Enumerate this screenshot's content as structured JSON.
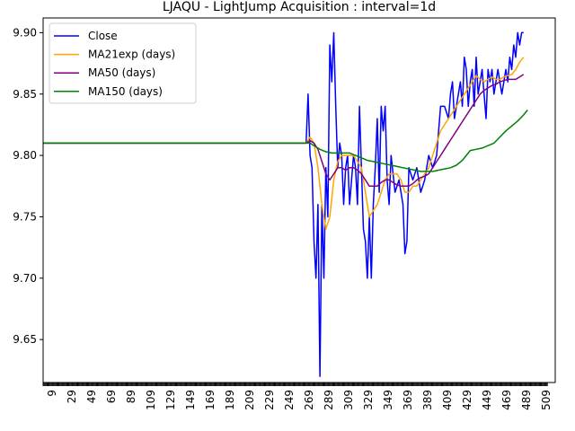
{
  "chart_data": {
    "type": "line",
    "title": "LJAQU - LightJump Acquisition : interval=1d",
    "xlabel": "",
    "ylabel": "",
    "xlim": [
      0,
      518
    ],
    "ylim": [
      9.615,
      9.912
    ],
    "grid": false,
    "legend_position": "top-left",
    "x_ticks": [
      "9",
      "29",
      "49",
      "69",
      "89",
      "109",
      "129",
      "149",
      "169",
      "189",
      "209",
      "229",
      "249",
      "269",
      "289",
      "309",
      "329",
      "349",
      "369",
      "389",
      "409",
      "429",
      "449",
      "469",
      "489",
      "509"
    ],
    "y_ticks": [
      "9.65",
      "9.70",
      "9.75",
      "9.80",
      "9.85",
      "9.90"
    ],
    "series": [
      {
        "name": "Close",
        "color": "#0000ff",
        "points": [
          [
            0,
            9.81
          ],
          [
            266,
            9.81
          ],
          [
            268,
            9.85
          ],
          [
            270,
            9.8
          ],
          [
            272,
            9.79
          ],
          [
            274,
            9.73
          ],
          [
            276,
            9.7
          ],
          [
            278,
            9.76
          ],
          [
            280,
            9.62
          ],
          [
            282,
            9.76
          ],
          [
            284,
            9.7
          ],
          [
            286,
            9.79
          ],
          [
            288,
            9.75
          ],
          [
            290,
            9.89
          ],
          [
            292,
            9.86
          ],
          [
            294,
            9.9
          ],
          [
            296,
            9.84
          ],
          [
            298,
            9.79
          ],
          [
            300,
            9.81
          ],
          [
            302,
            9.8
          ],
          [
            304,
            9.76
          ],
          [
            306,
            9.79
          ],
          [
            308,
            9.8
          ],
          [
            310,
            9.76
          ],
          [
            312,
            9.78
          ],
          [
            314,
            9.8
          ],
          [
            316,
            9.79
          ],
          [
            318,
            9.76
          ],
          [
            320,
            9.84
          ],
          [
            322,
            9.79
          ],
          [
            324,
            9.74
          ],
          [
            326,
            9.73
          ],
          [
            328,
            9.7
          ],
          [
            330,
            9.75
          ],
          [
            332,
            9.7
          ],
          [
            334,
            9.76
          ],
          [
            336,
            9.79
          ],
          [
            338,
            9.83
          ],
          [
            340,
            9.77
          ],
          [
            342,
            9.84
          ],
          [
            344,
            9.82
          ],
          [
            346,
            9.84
          ],
          [
            348,
            9.78
          ],
          [
            350,
            9.76
          ],
          [
            352,
            9.8
          ],
          [
            356,
            9.77
          ],
          [
            360,
            9.78
          ],
          [
            364,
            9.76
          ],
          [
            366,
            9.72
          ],
          [
            368,
            9.73
          ],
          [
            370,
            9.79
          ],
          [
            374,
            9.78
          ],
          [
            378,
            9.79
          ],
          [
            382,
            9.77
          ],
          [
            386,
            9.78
          ],
          [
            390,
            9.8
          ],
          [
            394,
            9.79
          ],
          [
            398,
            9.8
          ],
          [
            402,
            9.84
          ],
          [
            406,
            9.84
          ],
          [
            410,
            9.83
          ],
          [
            412,
            9.85
          ],
          [
            414,
            9.86
          ],
          [
            416,
            9.83
          ],
          [
            418,
            9.84
          ],
          [
            420,
            9.85
          ],
          [
            422,
            9.86
          ],
          [
            424,
            9.84
          ],
          [
            426,
            9.88
          ],
          [
            428,
            9.87
          ],
          [
            430,
            9.84
          ],
          [
            432,
            9.86
          ],
          [
            434,
            9.87
          ],
          [
            436,
            9.84
          ],
          [
            438,
            9.88
          ],
          [
            440,
            9.85
          ],
          [
            442,
            9.86
          ],
          [
            444,
            9.87
          ],
          [
            446,
            9.85
          ],
          [
            448,
            9.83
          ],
          [
            450,
            9.87
          ],
          [
            452,
            9.86
          ],
          [
            454,
            9.87
          ],
          [
            456,
            9.85
          ],
          [
            458,
            9.86
          ],
          [
            460,
            9.87
          ],
          [
            462,
            9.86
          ],
          [
            464,
            9.85
          ],
          [
            466,
            9.86
          ],
          [
            468,
            9.87
          ],
          [
            470,
            9.86
          ],
          [
            472,
            9.88
          ],
          [
            474,
            9.87
          ],
          [
            476,
            9.89
          ],
          [
            478,
            9.88
          ],
          [
            480,
            9.9
          ],
          [
            482,
            9.89
          ],
          [
            484,
            9.9
          ],
          [
            486,
            9.9
          ]
        ]
      },
      {
        "name": "MA21exp (days)",
        "color": "#ffa500",
        "points": [
          [
            0,
            9.81
          ],
          [
            266,
            9.81
          ],
          [
            270,
            9.815
          ],
          [
            274,
            9.81
          ],
          [
            278,
            9.79
          ],
          [
            282,
            9.76
          ],
          [
            286,
            9.74
          ],
          [
            290,
            9.75
          ],
          [
            294,
            9.78
          ],
          [
            298,
            9.795
          ],
          [
            302,
            9.8
          ],
          [
            306,
            9.8
          ],
          [
            310,
            9.8
          ],
          [
            314,
            9.8
          ],
          [
            318,
            9.795
          ],
          [
            322,
            9.79
          ],
          [
            326,
            9.77
          ],
          [
            330,
            9.75
          ],
          [
            334,
            9.755
          ],
          [
            338,
            9.76
          ],
          [
            342,
            9.77
          ],
          [
            346,
            9.78
          ],
          [
            350,
            9.785
          ],
          [
            354,
            9.785
          ],
          [
            358,
            9.785
          ],
          [
            362,
            9.78
          ],
          [
            366,
            9.77
          ],
          [
            370,
            9.77
          ],
          [
            374,
            9.775
          ],
          [
            378,
            9.775
          ],
          [
            382,
            9.78
          ],
          [
            386,
            9.785
          ],
          [
            390,
            9.79
          ],
          [
            394,
            9.8
          ],
          [
            398,
            9.81
          ],
          [
            402,
            9.82
          ],
          [
            406,
            9.825
          ],
          [
            410,
            9.83
          ],
          [
            414,
            9.835
          ],
          [
            418,
            9.84
          ],
          [
            422,
            9.845
          ],
          [
            426,
            9.85
          ],
          [
            430,
            9.855
          ],
          [
            434,
            9.86
          ],
          [
            438,
            9.865
          ],
          [
            442,
            9.862
          ],
          [
            446,
            9.86
          ],
          [
            450,
            9.862
          ],
          [
            454,
            9.864
          ],
          [
            458,
            9.862
          ],
          [
            462,
            9.862
          ],
          [
            466,
            9.864
          ],
          [
            470,
            9.865
          ],
          [
            474,
            9.866
          ],
          [
            478,
            9.87
          ],
          [
            482,
            9.876
          ],
          [
            486,
            9.88
          ]
        ]
      },
      {
        "name": "MA50 (days)",
        "color": "#800080",
        "points": [
          [
            0,
            9.81
          ],
          [
            266,
            9.81
          ],
          [
            270,
            9.812
          ],
          [
            274,
            9.81
          ],
          [
            278,
            9.805
          ],
          [
            282,
            9.795
          ],
          [
            286,
            9.785
          ],
          [
            290,
            9.78
          ],
          [
            294,
            9.785
          ],
          [
            298,
            9.79
          ],
          [
            302,
            9.79
          ],
          [
            306,
            9.788
          ],
          [
            310,
            9.79
          ],
          [
            314,
            9.79
          ],
          [
            318,
            9.788
          ],
          [
            322,
            9.785
          ],
          [
            326,
            9.78
          ],
          [
            330,
            9.775
          ],
          [
            334,
            9.775
          ],
          [
            338,
            9.775
          ],
          [
            342,
            9.778
          ],
          [
            346,
            9.78
          ],
          [
            350,
            9.78
          ],
          [
            354,
            9.778
          ],
          [
            358,
            9.776
          ],
          [
            362,
            9.775
          ],
          [
            366,
            9.775
          ],
          [
            370,
            9.775
          ],
          [
            374,
            9.777
          ],
          [
            378,
            9.78
          ],
          [
            382,
            9.782
          ],
          [
            386,
            9.783
          ],
          [
            390,
            9.785
          ],
          [
            394,
            9.79
          ],
          [
            398,
            9.795
          ],
          [
            402,
            9.8
          ],
          [
            406,
            9.805
          ],
          [
            410,
            9.81
          ],
          [
            414,
            9.815
          ],
          [
            418,
            9.82
          ],
          [
            422,
            9.825
          ],
          [
            426,
            9.83
          ],
          [
            430,
            9.835
          ],
          [
            434,
            9.84
          ],
          [
            438,
            9.845
          ],
          [
            442,
            9.85
          ],
          [
            446,
            9.853
          ],
          [
            450,
            9.855
          ],
          [
            454,
            9.857
          ],
          [
            458,
            9.858
          ],
          [
            462,
            9.86
          ],
          [
            466,
            9.861
          ],
          [
            470,
            9.862
          ],
          [
            474,
            9.862
          ],
          [
            478,
            9.862
          ],
          [
            482,
            9.864
          ],
          [
            486,
            9.866
          ]
        ]
      },
      {
        "name": "MA150 (days)",
        "color": "#008000",
        "points": [
          [
            0,
            9.81
          ],
          [
            266,
            9.81
          ],
          [
            270,
            9.81
          ],
          [
            274,
            9.808
          ],
          [
            280,
            9.805
          ],
          [
            286,
            9.803
          ],
          [
            292,
            9.802
          ],
          [
            298,
            9.802
          ],
          [
            304,
            9.802
          ],
          [
            310,
            9.802
          ],
          [
            316,
            9.8
          ],
          [
            322,
            9.798
          ],
          [
            328,
            9.796
          ],
          [
            334,
            9.795
          ],
          [
            340,
            9.794
          ],
          [
            346,
            9.793
          ],
          [
            352,
            9.792
          ],
          [
            358,
            9.791
          ],
          [
            364,
            9.79
          ],
          [
            370,
            9.789
          ],
          [
            376,
            9.788
          ],
          [
            382,
            9.787
          ],
          [
            388,
            9.787
          ],
          [
            394,
            9.787
          ],
          [
            400,
            9.788
          ],
          [
            406,
            9.789
          ],
          [
            412,
            9.79
          ],
          [
            418,
            9.792
          ],
          [
            424,
            9.796
          ],
          [
            428,
            9.8
          ],
          [
            432,
            9.804
          ],
          [
            438,
            9.805
          ],
          [
            444,
            9.806
          ],
          [
            450,
            9.808
          ],
          [
            456,
            9.81
          ],
          [
            462,
            9.815
          ],
          [
            468,
            9.82
          ],
          [
            474,
            9.824
          ],
          [
            480,
            9.828
          ],
          [
            486,
            9.833
          ],
          [
            490,
            9.837
          ]
        ]
      }
    ]
  }
}
